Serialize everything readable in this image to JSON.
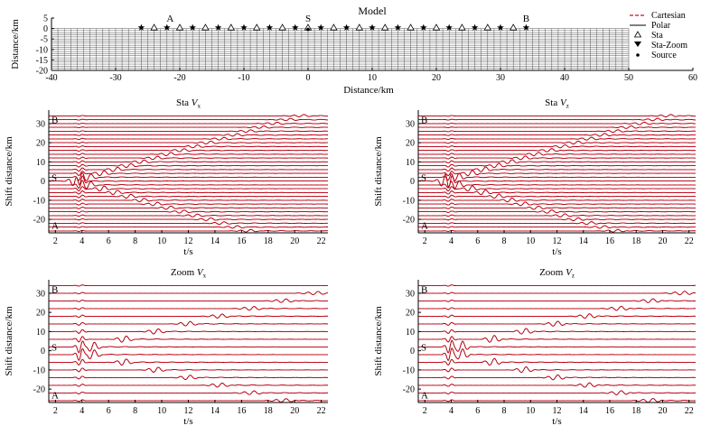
{
  "colors": {
    "cartesian": "#e0001b",
    "polar": "#7a0000",
    "axis": "#000000",
    "grid": "#555555"
  },
  "chart_data": [
    {
      "type": "scatter",
      "id": "model",
      "title": "Model",
      "xlabel": "Distance/km",
      "ylabel": "Distance/km",
      "xlim": [
        -40,
        60
      ],
      "ylim": [
        -20,
        5
      ],
      "grid_xlim": [
        -40,
        50
      ],
      "grid_ylim": [
        -20,
        0
      ],
      "grid": true,
      "xticks": [
        -40,
        -30,
        -20,
        -10,
        0,
        10,
        20,
        30,
        40,
        50,
        60
      ],
      "yticks": [
        5,
        0,
        -5,
        -10,
        -15,
        -20
      ],
      "legend_position": "top-right",
      "legend": [
        "Cartesian",
        "Polar",
        "Sta",
        "Sta-Zoom",
        "Source"
      ],
      "annotations": [
        {
          "text": "A",
          "x": -21.5
        },
        {
          "text": "S",
          "x": 0
        },
        {
          "text": "B",
          "x": 34
        }
      ],
      "stations": [
        -24,
        -20,
        -16,
        -12,
        -8,
        -4,
        0,
        4,
        8,
        12,
        16,
        20,
        24,
        28,
        32
      ],
      "zoom_stations": [
        -26,
        -22,
        -18,
        -14,
        -10,
        -6,
        -2,
        2,
        6,
        10,
        14,
        18,
        22,
        26,
        30,
        34
      ],
      "source": [
        0,
        0
      ]
    },
    {
      "type": "line",
      "id": "sta_vx",
      "title": "Sta",
      "component": "V",
      "subscript": "x",
      "xlabel": "t/s",
      "ylabel": "Shift distance/km",
      "xlim": [
        1.5,
        22.5
      ],
      "ylim": [
        -27,
        37
      ],
      "xticks": [
        2,
        4,
        6,
        8,
        10,
        12,
        14,
        16,
        18,
        20,
        22
      ],
      "yticks": [
        -20,
        -10,
        0,
        10,
        20,
        30
      ],
      "trace_offsets_km": [
        -26,
        -24,
        -22,
        -20,
        -18,
        -16,
        -14,
        -12,
        -10,
        -8,
        -6,
        -4,
        -2,
        0,
        2,
        4,
        6,
        8,
        10,
        12,
        14,
        16,
        18,
        20,
        22,
        24,
        26,
        28,
        30,
        32,
        34
      ],
      "series": [
        "Cartesian",
        "Polar"
      ],
      "labels": [
        "B",
        "S",
        "A"
      ]
    },
    {
      "type": "line",
      "id": "sta_vz",
      "title": "Sta",
      "component": "V",
      "subscript": "z",
      "xlabel": "t/s",
      "ylabel": "Shift distance/km",
      "xlim": [
        1.5,
        22.5
      ],
      "ylim": [
        -27,
        37
      ],
      "xticks": [
        2,
        4,
        6,
        8,
        10,
        12,
        14,
        16,
        18,
        20,
        22
      ],
      "yticks": [
        -20,
        -10,
        0,
        10,
        20,
        30
      ],
      "trace_offsets_km": [
        -26,
        -24,
        -22,
        -20,
        -18,
        -16,
        -14,
        -12,
        -10,
        -8,
        -6,
        -4,
        -2,
        0,
        2,
        4,
        6,
        8,
        10,
        12,
        14,
        16,
        18,
        20,
        22,
        24,
        26,
        28,
        30,
        32,
        34
      ],
      "series": [
        "Cartesian",
        "Polar"
      ],
      "labels": [
        "B",
        "S",
        "A"
      ]
    },
    {
      "type": "line",
      "id": "zoom_vx",
      "title": "Zoom",
      "component": "V",
      "subscript": "x",
      "xlabel": "t/s",
      "ylabel": "Shift distance/km",
      "xlim": [
        1.5,
        22.5
      ],
      "ylim": [
        -27,
        37
      ],
      "xticks": [
        2,
        4,
        6,
        8,
        10,
        12,
        14,
        16,
        18,
        20,
        22
      ],
      "yticks": [
        -20,
        -10,
        0,
        10,
        20,
        30
      ],
      "trace_offsets_km": [
        -26,
        -22,
        -18,
        -14,
        -10,
        -6,
        -2,
        2,
        6,
        10,
        14,
        18,
        22,
        26,
        30,
        34
      ],
      "series": [
        "Cartesian",
        "Polar"
      ],
      "labels": [
        "B",
        "S",
        "A"
      ]
    },
    {
      "type": "line",
      "id": "zoom_vz",
      "title": "Zoom",
      "component": "V",
      "subscript": "z",
      "xlabel": "t/s",
      "ylabel": "Shift distance/km",
      "xlim": [
        1.5,
        22.5
      ],
      "ylim": [
        -27,
        37
      ],
      "xticks": [
        2,
        4,
        6,
        8,
        10,
        12,
        14,
        16,
        18,
        20,
        22
      ],
      "yticks": [
        -20,
        -10,
        0,
        10,
        20,
        30
      ],
      "trace_offsets_km": [
        -26,
        -22,
        -18,
        -14,
        -10,
        -6,
        -2,
        2,
        6,
        10,
        14,
        18,
        22,
        26,
        30,
        34
      ],
      "series": [
        "Cartesian",
        "Polar"
      ],
      "labels": [
        "B",
        "S",
        "A"
      ]
    }
  ]
}
